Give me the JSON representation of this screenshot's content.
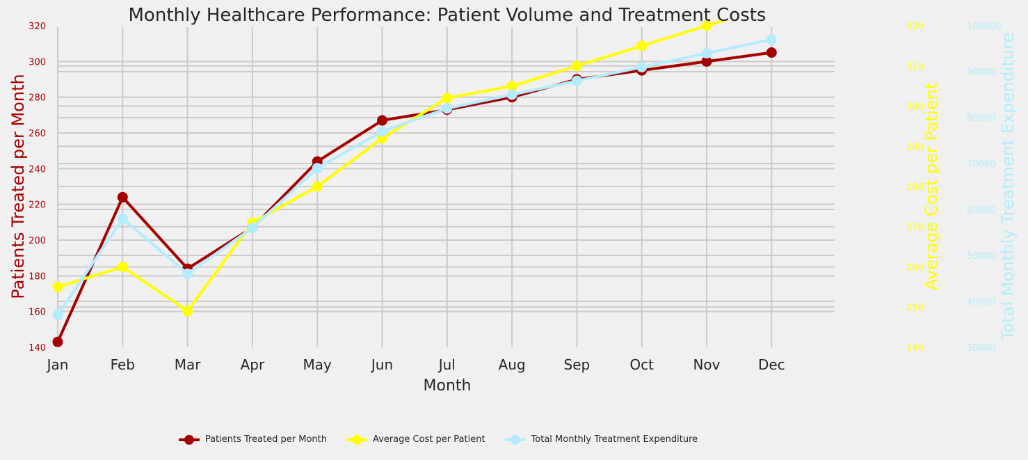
{
  "chart_data": {
    "type": "line",
    "title": "Monthly Healthcare Performance: Patient Volume and Treatment Costs",
    "xlabel": "Month",
    "categories": [
      "Jan",
      "Feb",
      "Mar",
      "Apr",
      "May",
      "Jun",
      "Jul",
      "Aug",
      "Sep",
      "Oct",
      "Nov",
      "Dec"
    ],
    "grid": true,
    "legend_position": "bottom-center",
    "series": [
      {
        "name": "Patients Treated per Month",
        "axis": "left",
        "ylabel": "Patients Treated per Month",
        "ylim": [
          140,
          320
        ],
        "yticks": [
          140,
          160,
          180,
          200,
          220,
          240,
          260,
          280,
          300,
          320
        ],
        "color": "#a50000",
        "values": [
          143,
          224,
          184,
          207,
          244,
          267,
          273,
          280,
          290,
          295,
          300,
          305
        ]
      },
      {
        "name": "Average Cost per Patient",
        "axis": "right",
        "ylabel": "Average Cost per Patient",
        "ylim": [
          240,
          320
        ],
        "yticks": [
          240,
          250,
          260,
          270,
          280,
          290,
          300,
          310,
          320
        ],
        "color": "#ffff00",
        "values": [
          255,
          260,
          249,
          271,
          280,
          292,
          302,
          305,
          310,
          315,
          320,
          325
        ]
      },
      {
        "name": "Total Monthly Treatment Expenditure",
        "axis": "right-outer",
        "ylabel": "Total Monthly Treatment Expenditure",
        "ylim": [
          30000,
          100000
        ],
        "yticks": [
          30000,
          40000,
          50000,
          60000,
          70000,
          80000,
          90000,
          100000
        ],
        "color": "#b3ecff",
        "values": [
          37000,
          58000,
          46000,
          56000,
          69000,
          77000,
          82000,
          85000,
          88000,
          91000,
          94000,
          97000
        ]
      }
    ]
  }
}
